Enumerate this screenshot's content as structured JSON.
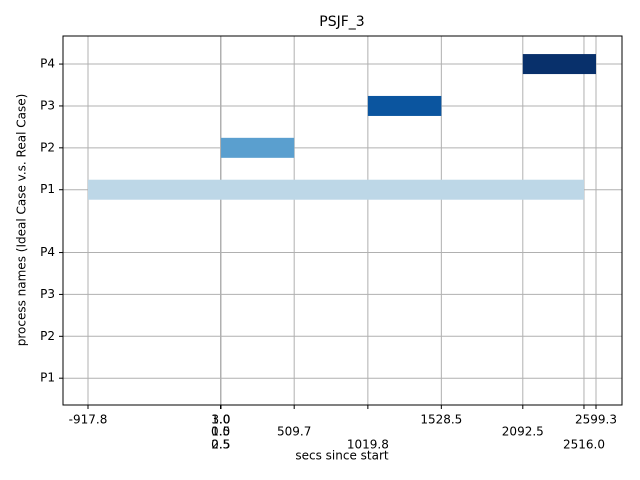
{
  "chart_data": {
    "type": "gantt",
    "title": "PSJF_3",
    "x_label": "secs since start",
    "y_label": "process names (Ideal Case v.s. Real Case)",
    "xlim": [
      -1090.9,
      2779.3
    ],
    "ylim": [
      0.36,
      9.17
    ],
    "xticks": [
      -917.8,
      {
        "value": 0,
        "label": "0.0"
      },
      0.5,
      {
        "value": 1,
        "label": "1.0"
      },
      1.5,
      2.5,
      {
        "value": 3,
        "label": "3.0"
      },
      509.7,
      1019.8,
      1528.5,
      2092.5,
      {
        "value": 2516,
        "label": "2516.0"
      },
      2599.3
    ],
    "yticks": [
      {
        "value": 1,
        "label": "P1"
      },
      {
        "value": 2,
        "label": "P2"
      },
      {
        "value": 3,
        "label": "P3"
      },
      {
        "value": 4,
        "label": "P4"
      },
      {
        "value": 5.5,
        "label": "P1"
      },
      {
        "value": 6.5,
        "label": "P2"
      },
      {
        "value": 7.5,
        "label": "P3"
      },
      {
        "value": 8.5,
        "label": "P4"
      }
    ],
    "grid": true,
    "tasks": [
      {
        "y": 5.5,
        "start": -917.8,
        "end": 2516,
        "color": "#bdd7e7"
      },
      {
        "y": 6.5,
        "start": 3,
        "end": 509.7,
        "color": "#5a9fcf"
      },
      {
        "y": 7.5,
        "start": 1019.8,
        "end": 1528.5,
        "color": "#0b559f"
      },
      {
        "y": 8.5,
        "start": 2092.5,
        "end": 2599.3,
        "color": "#08306b"
      }
    ]
  }
}
